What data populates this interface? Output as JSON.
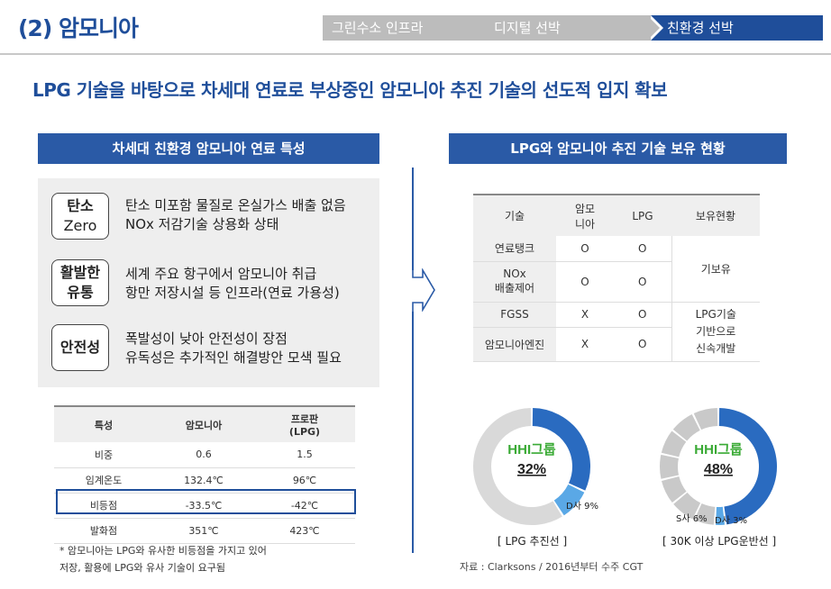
{
  "header": {
    "title": "(2) 암모니아",
    "tabs": [
      {
        "label": "그린수소 인프라",
        "active": false
      },
      {
        "label": "디지털 선박",
        "active": false
      },
      {
        "label": "친환경 선박",
        "active": true
      }
    ]
  },
  "headline": "LPG 기술을 바탕으로 차세대 연료로 부상중인 암모니아 추진 기술의 선도적 입지 확보",
  "left": {
    "section_title": "차세대 친환경 암모니아 연료 특성",
    "features": [
      {
        "badge_line1": "탄소",
        "badge_line2": "Zero",
        "text_line1": "탄소 미포함 물질로 온실가스 배출 없음",
        "text_line2": "NOx 저감기술 상용화 상태"
      },
      {
        "badge_line1": "활발한",
        "badge_line2": "유통",
        "text_line1": "세계 주요 항구에서 암모니아 취급",
        "text_line2": "항만 저장시설 등 인프라(연료 가용성)"
      },
      {
        "badge_line1": "안전성",
        "badge_line2": "",
        "text_line1": "폭발성이 낮아 안전성이 장점",
        "text_line2": "유독성은 추가적인 해결방안 모색 필요"
      }
    ],
    "props_table": {
      "headers": [
        "특성",
        "암모니아",
        "프로판",
        "(LPG)"
      ],
      "rows": [
        [
          "비중",
          "0.6",
          "1.5"
        ],
        [
          "임계온도",
          "132.4℃",
          "96℃"
        ],
        [
          "비등점",
          "-33.5℃",
          "-42℃"
        ],
        [
          "발화점",
          "351℃",
          "423℃"
        ]
      ]
    },
    "footnote_line1": "* 암모니아는 LPG와 유사한 비등점을 가지고 있어",
    "footnote_line2": "저장, 활용에 LPG와 유사 기술이 요구됨"
  },
  "right": {
    "section_title": "LPG와 암모니아 추진 기술 보유 현황",
    "tech_table": {
      "headers": [
        "기술",
        "암모",
        "니아",
        "LPG",
        "보유현황"
      ],
      "rows": [
        {
          "name": "연료탱크",
          "name2": "",
          "ammonia": "O",
          "lpg": "O"
        },
        {
          "name": "NOx",
          "name2": "배출제어",
          "ammonia": "O",
          "lpg": "O"
        },
        {
          "name": "FGSS",
          "name2": "",
          "ammonia": "X",
          "lpg": "O"
        },
        {
          "name": "암모니아엔진",
          "name2": "",
          "ammonia": "X",
          "lpg": "O"
        }
      ],
      "status_held": "기보유",
      "status_dev_line1": "LPG기술",
      "status_dev_line2": "기반으로",
      "status_dev_line3": "신속개발"
    },
    "donut1": {
      "center_label": "HHI그룹",
      "center_value": "32%",
      "other_label": "D사 9%",
      "caption": "[ LPG 추진선 ]",
      "shares": [
        32,
        9
      ],
      "colors": {
        "main": "#2a6bc0",
        "second": "#5aa8e6",
        "rest": "#d9d9d9",
        "label": "#3aaa35"
      }
    },
    "donut2": {
      "center_label": "HHI그룹",
      "center_value": "48%",
      "label_s": "S사 6%",
      "label_d": "D사 3%",
      "caption": "[ 30K 이상 LPG운반선 ]",
      "shares": [
        48,
        3,
        6
      ],
      "colors": {
        "main": "#2a6bc0",
        "second": "#5aa8e6",
        "rest": "#c9c9c9",
        "label": "#3aaa35"
      }
    },
    "source": "자료 : Clarksons / 2016년부터 수주 CGT"
  }
}
